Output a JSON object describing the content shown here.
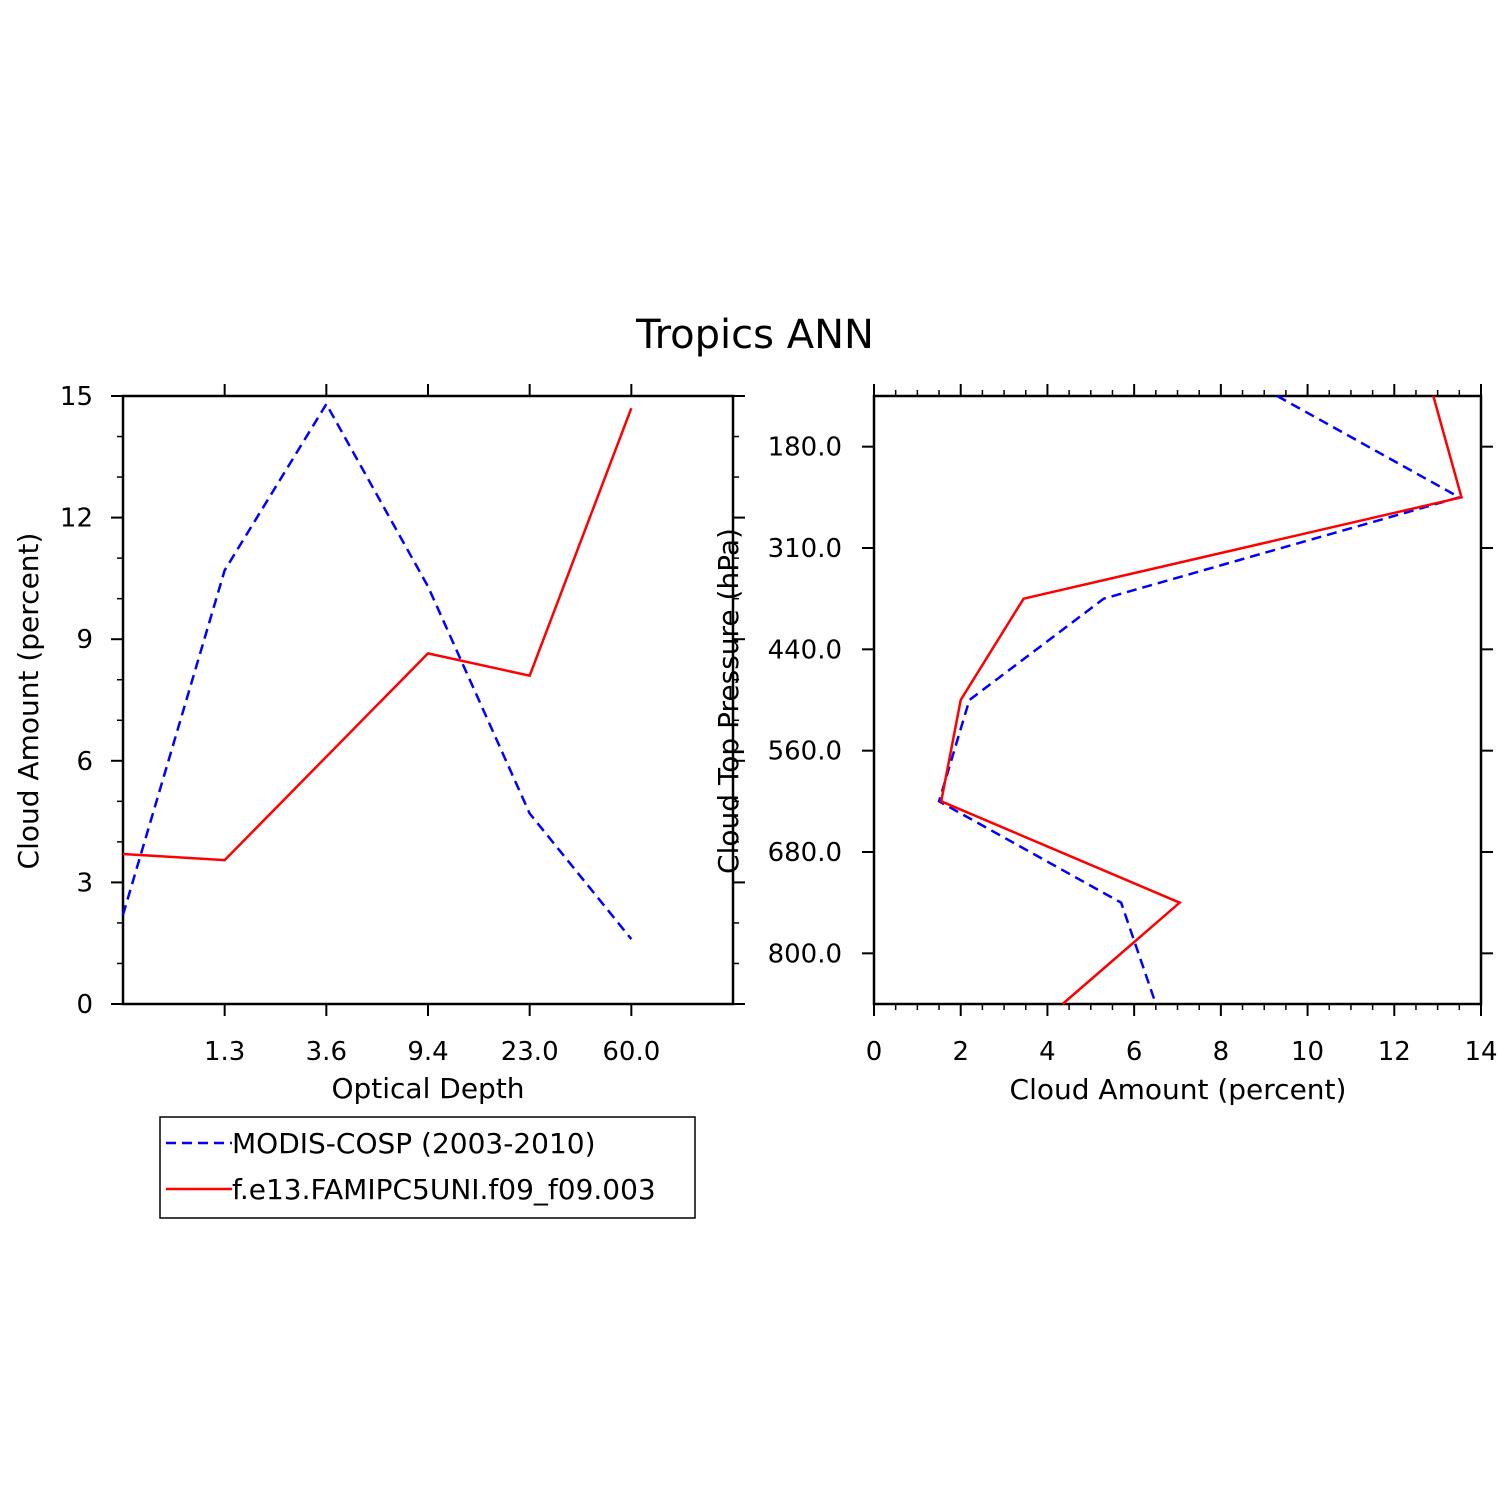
{
  "title": "Tropics ANN",
  "chart_data": [
    {
      "type": "line",
      "xlabel": "Optical Depth",
      "ylabel": "Cloud Amount (percent)",
      "ylim": [
        0,
        15
      ],
      "y_ticks": [
        "0",
        "3",
        "6",
        "9",
        "12",
        "15"
      ],
      "x_tick_labels": [
        "1.3",
        "3.6",
        "9.4",
        "23.0",
        "60.0"
      ],
      "bin_count": 6,
      "series": [
        {
          "name": "MODIS-COSP (2003-2010)",
          "color": "#0000ff",
          "dash": "dashed",
          "values": [
            2.2,
            10.7,
            14.8,
            10.3,
            4.7,
            1.6
          ]
        },
        {
          "name": "f.e13.FAMIPC5UNI.f09_f09.003",
          "color": "#ff0000",
          "dash": "solid",
          "values": [
            3.7,
            3.55,
            6.1,
            8.65,
            8.1,
            14.7
          ]
        }
      ]
    },
    {
      "type": "line",
      "orientation": "horizontal",
      "xlabel": "Cloud Amount (percent)",
      "ylabel": "Cloud Top Pressure (hPa)",
      "xlim": [
        0,
        14
      ],
      "x_ticks": [
        "0",
        "2",
        "4",
        "6",
        "8",
        "10",
        "12",
        "14"
      ],
      "y_tick_labels": [
        "180.0",
        "310.0",
        "440.0",
        "560.0",
        "680.0",
        "800.0"
      ],
      "bin_count": 7,
      "series": [
        {
          "name": "MODIS-COSP (2003-2010)",
          "color": "#0000ff",
          "dash": "dashed",
          "values": [
            9.3,
            13.5,
            5.3,
            2.2,
            1.5,
            5.7,
            6.5
          ]
        },
        {
          "name": "f.e13.FAMIPC5UNI.f09_f09.003",
          "color": "#ff0000",
          "dash": "solid",
          "values": [
            12.9,
            13.55,
            3.45,
            2.0,
            1.55,
            7.05,
            4.35
          ]
        }
      ]
    }
  ],
  "legend": [
    {
      "label": "MODIS-COSP (2003-2010)",
      "color": "#0000ff",
      "dash": "dashed"
    },
    {
      "label": "f.e13.FAMIPC5UNI.f09_f09.003",
      "color": "#ff0000",
      "dash": "solid"
    }
  ]
}
